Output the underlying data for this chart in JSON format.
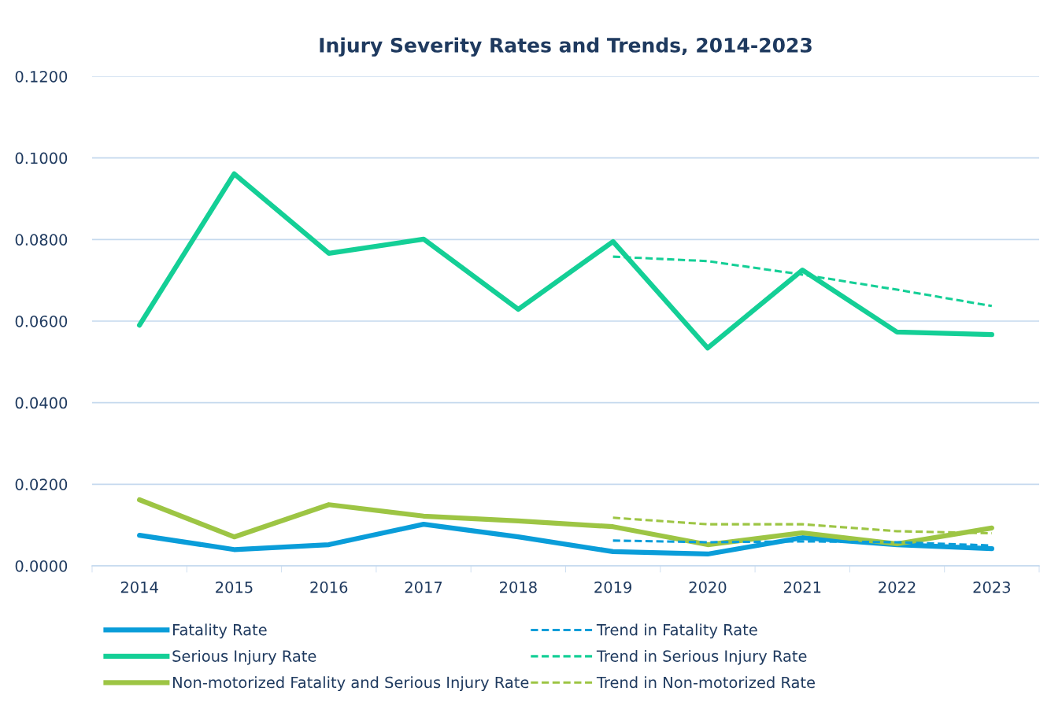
{
  "chart_data": {
    "type": "line",
    "title": "Injury Severity Rates and Trends, 2014-2023",
    "categories": [
      "2014",
      "2015",
      "2016",
      "2017",
      "2018",
      "2019",
      "2020",
      "2021",
      "2022",
      "2023"
    ],
    "series": [
      {
        "name": "Fatality Rate",
        "color": "#0a9dd9",
        "values": [
          0.0075,
          0.004,
          0.0052,
          0.0102,
          0.0071,
          0.0035,
          0.0029,
          0.0069,
          0.0052,
          0.0042
        ]
      },
      {
        "name": "Serious Injury Rate",
        "color": "#14cf96",
        "values": [
          0.059,
          0.0961,
          0.0766,
          0.0801,
          0.0629,
          0.0795,
          0.0534,
          0.0725,
          0.0573,
          0.0567
        ]
      },
      {
        "name": "Non-motorized Fatality and Serious Injury Rate",
        "color": "#9dc544",
        "values": [
          0.0162,
          0.0071,
          0.015,
          0.0122,
          0.011,
          0.0096,
          0.0052,
          0.0081,
          0.0054,
          0.0093
        ]
      },
      {
        "name": "Trend in Fatality Rate",
        "color": "#0a9dd9",
        "line_style": "dashed",
        "values": [
          null,
          null,
          null,
          null,
          null,
          0.0062,
          0.0058,
          0.006,
          0.0058,
          0.005
        ]
      },
      {
        "name": "Trend in Serious Injury Rate",
        "color": "#14cf96",
        "line_style": "dashed",
        "values": [
          null,
          null,
          null,
          null,
          null,
          0.0758,
          0.0747,
          0.0714,
          0.0677,
          0.0637
        ]
      },
      {
        "name": "Trend in Non-motorized Rate",
        "color": "#9dc544",
        "line_style": "dashed",
        "values": [
          null,
          null,
          null,
          null,
          null,
          0.0118,
          0.0102,
          0.0102,
          0.0085,
          0.008
        ]
      }
    ],
    "ylim": [
      0,
      0.12
    ],
    "yticks": [
      {
        "value": 0,
        "label": "0.0000"
      },
      {
        "value": 0.02,
        "label": "0.0200"
      },
      {
        "value": 0.04,
        "label": "0.0400"
      },
      {
        "value": 0.06,
        "label": "0.0600"
      },
      {
        "value": 0.08,
        "label": "0.0800"
      },
      {
        "value": 0.1,
        "label": "0.1000"
      },
      {
        "value": 0.12,
        "label": "0.1200"
      }
    ],
    "grid": "y",
    "legend": "bottom",
    "line_style": "solid",
    "marker": "none"
  }
}
